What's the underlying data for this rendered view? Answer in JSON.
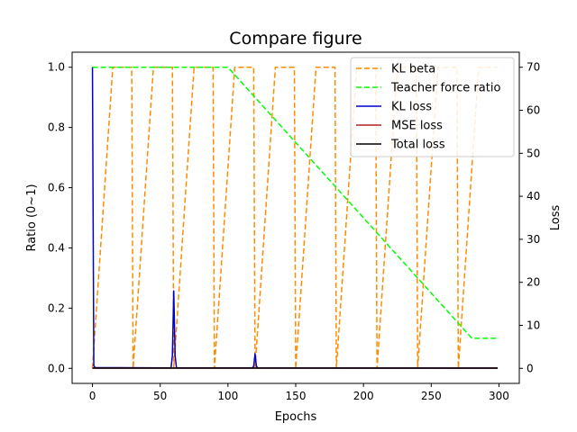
{
  "chart_data": {
    "type": "line",
    "title": "Compare figure",
    "xlabel": "Epochs",
    "ylabel_left": "Ratio (0~1)",
    "ylabel_right": "Loss",
    "xlim": [
      -15,
      315
    ],
    "ylim_left": [
      -0.05,
      1.05
    ],
    "ylim_right": [
      -3.5,
      73.5
    ],
    "x_ticks": [
      0,
      50,
      100,
      150,
      200,
      250,
      300
    ],
    "y_ticks_left": [
      0.0,
      0.2,
      0.4,
      0.6,
      0.8,
      1.0
    ],
    "y_ticks_right": [
      0,
      10,
      20,
      30,
      40,
      50,
      60,
      70
    ],
    "legend_position": "top-right",
    "series": [
      {
        "name": "KL beta",
        "axis": "left",
        "style": "dashed",
        "color": "#ff8c00",
        "x": [
          0,
          15,
          29,
          30,
          45,
          59,
          60,
          75,
          89,
          90,
          105,
          119,
          120,
          135,
          149,
          150,
          165,
          179,
          180,
          195,
          209,
          210,
          225,
          239,
          240,
          255,
          269,
          270,
          285,
          299
        ],
        "y": [
          0,
          1,
          1,
          0,
          1,
          1,
          0,
          1,
          1,
          0,
          1,
          1,
          0,
          1,
          1,
          0,
          1,
          1,
          0,
          1,
          1,
          0,
          1,
          1,
          0,
          1,
          1,
          0,
          1,
          1
        ]
      },
      {
        "name": "Teacher force ratio",
        "axis": "left",
        "style": "dashed",
        "color": "#00ff00",
        "x": [
          0,
          100,
          280,
          299
        ],
        "y": [
          1.0,
          1.0,
          0.1,
          0.1
        ]
      },
      {
        "name": "KL loss",
        "axis": "right",
        "style": "solid",
        "color": "#0000cc",
        "x": [
          0,
          1,
          2,
          58,
          59,
          60,
          61,
          62,
          118,
          119,
          120,
          121,
          122,
          299
        ],
        "y": [
          70,
          0.6,
          0.2,
          0.1,
          3,
          18,
          3,
          0.1,
          0.1,
          0.5,
          3.4,
          0.5,
          0.1,
          0.05
        ]
      },
      {
        "name": "MSE loss",
        "axis": "right",
        "style": "solid",
        "color": "#b22222",
        "x": [
          0,
          299
        ],
        "y": [
          0.05,
          0.05
        ]
      },
      {
        "name": "Total loss",
        "axis": "right",
        "style": "solid",
        "color": "#000000",
        "x": [
          0,
          299
        ],
        "y": [
          0.05,
          0.05
        ]
      }
    ]
  }
}
